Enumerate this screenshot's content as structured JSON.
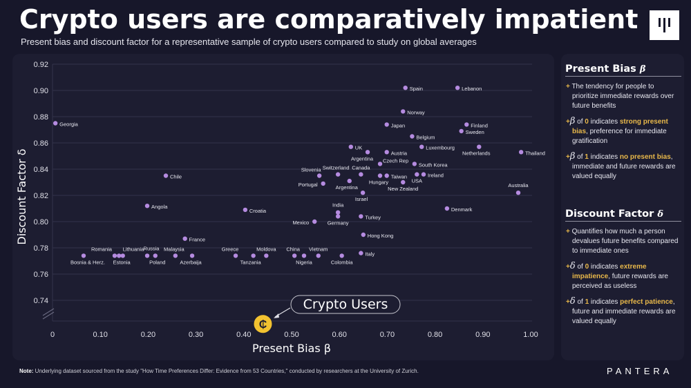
{
  "header": {
    "title": "Crypto users are comparatively impatient",
    "subtitle": "Present bias and discount factor for a representative sample of crypto users compared to study on global averages"
  },
  "logo_icon": "pantera-bars-logo",
  "side_panel": {
    "present_bias": {
      "heading": "Present Bias",
      "symbol": "β",
      "item1": "The tendency for people to prioritize immediate rewards over future benefits",
      "item2_pre": "of",
      "item2_val": "0",
      "item2_mid": "indicates",
      "item2_hl": "strong present bias",
      "item2_post": ", preference for immediate gratification",
      "item3_pre": "of",
      "item3_val": "1",
      "item3_mid": "indicates",
      "item3_hl": "no present bias",
      "item3_post": ", immediate and future rewards are valued equally"
    },
    "discount_factor": {
      "heading": "Discount Factor",
      "symbol": "δ",
      "item1": "Quantifies how much a person devalues future benefits compared to immediate ones",
      "item2_pre": "of",
      "item2_val": "0",
      "item2_mid": "indicates",
      "item2_hl": "extreme impatience",
      "item2_post": ", future rewards are perceived as useless",
      "item3_pre": "of",
      "item3_val": "1",
      "item3_mid": "indicates",
      "item3_hl": "perfect patience",
      "item3_post": ", future and immediate rewards are valued equally"
    }
  },
  "footer": {
    "note_label": "Note:",
    "note_text": " Underlying dataset sourced from the study \"How Time Preferences Differ: Evidence from 53 Countries,\" conducted by researchers at the University of Zurich.",
    "brand": "PANTERA"
  },
  "chart_data": {
    "type": "scatter",
    "xlabel": "Present Bias β",
    "ylabel": "Discount Factor δ",
    "xlim": [
      0,
      1.0
    ],
    "ylim": [
      0.74,
      0.92
    ],
    "xticks": [
      "0",
      "0.10",
      "0.20",
      "0.30",
      "0.40",
      "0.50",
      "0.60",
      "0.70",
      "0.80",
      "0.90",
      "1.00"
    ],
    "yticks": [
      "0.92",
      "0.90",
      "0.88",
      "0.86",
      "0.84",
      "0.82",
      "0.80",
      "0.78",
      "0.76",
      "0.74"
    ],
    "grid": true,
    "y_axis_break": true,
    "point_color": "#b58be0",
    "highlight_color": "#f2c230",
    "points": [
      {
        "label": "Georgia",
        "x": 0.006,
        "y": 0.875
      },
      {
        "label": "Chile",
        "x": 0.237,
        "y": 0.835
      },
      {
        "label": "Angola",
        "x": 0.198,
        "y": 0.812
      },
      {
        "label": "Croatia",
        "x": 0.403,
        "y": 0.809
      },
      {
        "label": "France",
        "x": 0.277,
        "y": 0.787
      },
      {
        "label": "Bosnia & Herz.",
        "x": 0.065,
        "y": 0.774
      },
      {
        "label": "Romania",
        "x": 0.13,
        "y": 0.774
      },
      {
        "label": "Estonia",
        "x": 0.139,
        "y": 0.774
      },
      {
        "label": "Lithuania",
        "x": 0.147,
        "y": 0.774
      },
      {
        "label": "Russia",
        "x": 0.198,
        "y": 0.774
      },
      {
        "label": "Poland",
        "x": 0.215,
        "y": 0.774
      },
      {
        "label": "Malaysia",
        "x": 0.257,
        "y": 0.774
      },
      {
        "label": "Azerbaija",
        "x": 0.292,
        "y": 0.774
      },
      {
        "label": "Greece",
        "x": 0.383,
        "y": 0.774
      },
      {
        "label": "Tanzania",
        "x": 0.42,
        "y": 0.774
      },
      {
        "label": "Moldova",
        "x": 0.447,
        "y": 0.774
      },
      {
        "label": "China",
        "x": 0.506,
        "y": 0.774
      },
      {
        "label": "Nigeria",
        "x": 0.526,
        "y": 0.774
      },
      {
        "label": "Vietnam",
        "x": 0.556,
        "y": 0.774
      },
      {
        "label": "Colombia",
        "x": 0.605,
        "y": 0.774
      },
      {
        "label": "Italy",
        "x": 0.645,
        "y": 0.776
      },
      {
        "label": "Hong Kong",
        "x": 0.65,
        "y": 0.79
      },
      {
        "label": "Mexico",
        "x": 0.548,
        "y": 0.8
      },
      {
        "label": "India",
        "x": 0.597,
        "y": 0.807
      },
      {
        "label": "Germany",
        "x": 0.597,
        "y": 0.804
      },
      {
        "label": "Turkey",
        "x": 0.645,
        "y": 0.804
      },
      {
        "label": "Denmark",
        "x": 0.825,
        "y": 0.81
      },
      {
        "label": "Israel",
        "x": 0.649,
        "y": 0.822
      },
      {
        "label": "Spain",
        "x": 0.738,
        "y": 0.902
      },
      {
        "label": "Lebanon",
        "x": 0.847,
        "y": 0.902
      },
      {
        "label": "Norway",
        "x": 0.733,
        "y": 0.884
      },
      {
        "label": "Japan",
        "x": 0.699,
        "y": 0.874
      },
      {
        "label": "Finland",
        "x": 0.866,
        "y": 0.874
      },
      {
        "label": "Sweden",
        "x": 0.855,
        "y": 0.869
      },
      {
        "label": "Belgium",
        "x": 0.752,
        "y": 0.865
      },
      {
        "label": "UK",
        "x": 0.624,
        "y": 0.857
      },
      {
        "label": "Luxembourg",
        "x": 0.772,
        "y": 0.857
      },
      {
        "label": "Netherlands",
        "x": 0.892,
        "y": 0.857
      },
      {
        "label": "Thailand",
        "x": 0.98,
        "y": 0.853
      },
      {
        "label": "Argentina",
        "x": 0.659,
        "y": 0.853
      },
      {
        "label": "Austria",
        "x": 0.699,
        "y": 0.853
      },
      {
        "label": "Czech Rep",
        "x": 0.685,
        "y": 0.844
      },
      {
        "label": "South Korea",
        "x": 0.757,
        "y": 0.844
      },
      {
        "label": "Slovenia",
        "x": 0.558,
        "y": 0.835
      },
      {
        "label": "Switzerland",
        "x": 0.597,
        "y": 0.836
      },
      {
        "label": "Canada",
        "x": 0.645,
        "y": 0.836
      },
      {
        "label": "Hungary",
        "x": 0.685,
        "y": 0.835
      },
      {
        "label": "Taiwan",
        "x": 0.699,
        "y": 0.835
      },
      {
        "label": "USA",
        "x": 0.762,
        "y": 0.836
      },
      {
        "label": "Ireland",
        "x": 0.776,
        "y": 0.836
      },
      {
        "label": "Argentina",
        "x": 0.621,
        "y": 0.831
      },
      {
        "label": "Portugal",
        "x": 0.566,
        "y": 0.829
      },
      {
        "label": "New Zealand",
        "x": 0.733,
        "y": 0.83
      },
      {
        "label": "Australia",
        "x": 0.974,
        "y": 0.822
      }
    ],
    "highlight": {
      "label": "Crypto Users",
      "x": 0.44,
      "y": 0.722,
      "icon": "crypto-coin-icon"
    }
  }
}
